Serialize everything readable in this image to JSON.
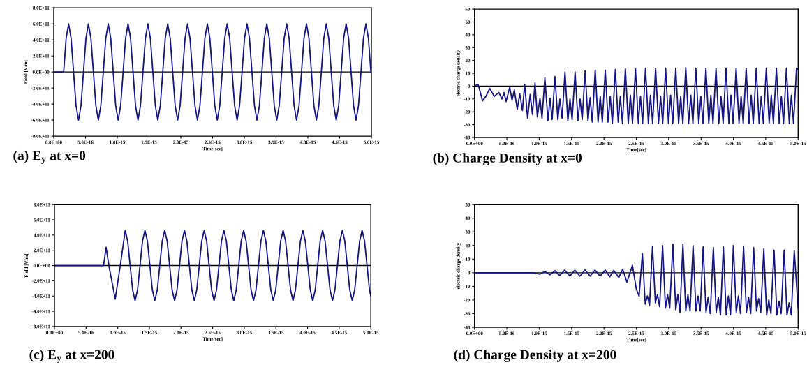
{
  "chart_data": [
    {
      "type": "line",
      "title": "(a) E$_{y}$ at x=0",
      "xlabel": "Time[sec]",
      "ylabel": "Field [V/m]",
      "grid": false,
      "xlim": [
        0,
        5e-15
      ],
      "xticks": [
        {
          "value": 0,
          "label": "0.0E+00"
        },
        {
          "value": 5e-16,
          "label": "5.0E-16"
        },
        {
          "value": 1e-15,
          "label": "1.0E-15"
        },
        {
          "value": 1.5e-15,
          "label": "1.5E-15"
        },
        {
          "value": 2e-15,
          "label": "2.0E-15"
        },
        {
          "value": 2.5e-15,
          "label": "2.5E-15"
        },
        {
          "value": 3e-15,
          "label": "3.0E-15"
        },
        {
          "value": 3.5e-15,
          "label": "3.5E-15"
        },
        {
          "value": 4e-15,
          "label": "4.0E-15"
        },
        {
          "value": 4.5e-15,
          "label": "4.5E-15"
        },
        {
          "value": 5e-15,
          "label": "5.0E-15"
        }
      ],
      "ylim": [
        -800000000000.0,
        800000000000.0
      ],
      "yticks": [
        {
          "value": -800000000000.0,
          "label": "-8.0E+11"
        },
        {
          "value": -600000000000.0,
          "label": "-6.0E+11"
        },
        {
          "value": -400000000000.0,
          "label": "-4.0E+11"
        },
        {
          "value": -200000000000.0,
          "label": "-2.0E+11"
        },
        {
          "value": 0,
          "label": "0.0E+00"
        },
        {
          "value": 200000000000.0,
          "label": "2.0E+11"
        },
        {
          "value": 400000000000.0,
          "label": "4.0E+11"
        },
        {
          "value": 600000000000.0,
          "label": "6.0E+11"
        },
        {
          "value": 800000000000.0,
          "label": "8.0E+11"
        }
      ],
      "ref_lines": [
        {
          "axis": "y",
          "value": 0,
          "color": "#000000"
        }
      ],
      "series": [
        {
          "color": "#141485",
          "x": [
            0,
            1.56e-16,
            1.95e-16,
            2.34e-16,
            2.73e-16,
            3.12e-16,
            3.51e-16,
            3.9e-16,
            4.29e-16,
            4.68e-16,
            5.07e-16,
            5.46e-16,
            5.85e-16,
            6.24e-16,
            6.63e-16,
            7.02e-16,
            7.41e-16,
            7.8e-16,
            8.19e-16,
            8.58e-16,
            8.97e-16,
            9.36e-16,
            9.75e-16,
            1.014e-15,
            1.053e-15,
            1.092e-15,
            1.131e-15,
            1.17e-15,
            1.209e-15,
            1.248e-15,
            1.287e-15,
            1.326e-15,
            1.365e-15,
            1.404e-15,
            1.443e-15,
            1.482e-15,
            1.521e-15,
            1.56e-15,
            1.599e-15,
            1.638e-15,
            1.677e-15,
            1.716e-15,
            1.755e-15,
            1.794e-15,
            1.833e-15,
            1.872e-15,
            1.911e-15,
            1.95e-15,
            1.989e-15,
            2.028e-15,
            2.067e-15,
            2.106e-15,
            2.145e-15,
            2.184e-15,
            2.223e-15,
            2.262e-15,
            2.301e-15,
            2.34e-15,
            2.379e-15,
            2.418e-15,
            2.457e-15,
            2.496e-15,
            2.535e-15,
            2.574e-15,
            2.613e-15,
            2.652e-15,
            2.691e-15,
            2.73e-15,
            2.769e-15,
            2.808e-15,
            2.847e-15,
            2.886e-15,
            2.925e-15,
            2.964e-15,
            3.003e-15,
            3.042e-15,
            3.081e-15,
            3.12e-15,
            3.159e-15,
            3.198e-15,
            3.237e-15,
            3.276e-15,
            3.315e-15,
            3.354e-15,
            3.393e-15,
            3.432e-15,
            3.471e-15,
            3.51e-15,
            3.549e-15,
            3.588e-15,
            3.627e-15,
            3.666e-15,
            3.705e-15,
            3.744e-15,
            3.783e-15,
            3.822e-15,
            3.861e-15,
            3.9e-15,
            3.939e-15,
            3.978e-15,
            4.017e-15,
            4.056e-15,
            4.095e-15,
            4.134e-15,
            4.173e-15,
            4.212e-15,
            4.251e-15,
            4.29e-15,
            4.329e-15,
            4.368e-15,
            4.407e-15,
            4.446e-15,
            4.485e-15,
            4.524e-15,
            4.563e-15,
            4.602e-15,
            4.641e-15,
            4.68e-15,
            4.719e-15,
            4.758e-15,
            4.797e-15,
            4.836e-15,
            4.875e-15,
            4.914e-15,
            4.953e-15,
            4.992e-15
          ],
          "values": [
            0,
            0,
            420000000000.0,
            600000000000.0,
            420000000000.0,
            0,
            -420000000000.0,
            -600000000000.0,
            -420000000000.0,
            0,
            420000000000.0,
            600000000000.0,
            420000000000.0,
            0,
            -420000000000.0,
            -600000000000.0,
            -420000000000.0,
            0,
            420000000000.0,
            600000000000.0,
            420000000000.0,
            0,
            -420000000000.0,
            -600000000000.0,
            -420000000000.0,
            0,
            420000000000.0,
            600000000000.0,
            420000000000.0,
            0,
            -420000000000.0,
            -600000000000.0,
            -420000000000.0,
            0,
            420000000000.0,
            600000000000.0,
            420000000000.0,
            0,
            -420000000000.0,
            -600000000000.0,
            -420000000000.0,
            0,
            420000000000.0,
            600000000000.0,
            420000000000.0,
            0,
            -420000000000.0,
            -600000000000.0,
            -420000000000.0,
            0,
            420000000000.0,
            600000000000.0,
            420000000000.0,
            0,
            -420000000000.0,
            -600000000000.0,
            -420000000000.0,
            0,
            420000000000.0,
            600000000000.0,
            420000000000.0,
            0,
            -420000000000.0,
            -600000000000.0,
            -420000000000.0,
            0,
            420000000000.0,
            600000000000.0,
            420000000000.0,
            0,
            -420000000000.0,
            -600000000000.0,
            -420000000000.0,
            0,
            420000000000.0,
            600000000000.0,
            420000000000.0,
            0,
            -420000000000.0,
            -600000000000.0,
            -420000000000.0,
            0,
            420000000000.0,
            600000000000.0,
            420000000000.0,
            0,
            -420000000000.0,
            -600000000000.0,
            -420000000000.0,
            0,
            420000000000.0,
            600000000000.0,
            420000000000.0,
            0,
            -420000000000.0,
            -600000000000.0,
            -420000000000.0,
            0,
            420000000000.0,
            600000000000.0,
            420000000000.0,
            0,
            -420000000000.0,
            -600000000000.0,
            -420000000000.0,
            0,
            420000000000.0,
            600000000000.0,
            420000000000.0,
            0,
            -420000000000.0,
            -600000000000.0,
            -420000000000.0,
            0,
            420000000000.0,
            600000000000.0,
            420000000000.0,
            0,
            -420000000000.0,
            -600000000000.0,
            -420000000000.0,
            0,
            420000000000.0,
            600000000000.0,
            420000000000.0,
            0
          ]
        }
      ]
    },
    {
      "type": "line",
      "title": "(b) Charge Density at x=0",
      "xlabel": "Time[sec]",
      "ylabel": "electric charge density",
      "grid": false,
      "xlim": [
        0,
        5e-15
      ],
      "xticks": [
        {
          "value": 0,
          "label": "0.0E+00"
        },
        {
          "value": 5e-16,
          "label": "5.0E-16"
        },
        {
          "value": 1e-15,
          "label": "1.0E-15"
        },
        {
          "value": 1.5e-15,
          "label": "1.5E-15"
        },
        {
          "value": 2e-15,
          "label": "2.0E-15"
        },
        {
          "value": 2.5e-15,
          "label": "2.5E-15"
        },
        {
          "value": 3e-15,
          "label": "3.0E-15"
        },
        {
          "value": 3.5e-15,
          "label": "3.5E-15"
        },
        {
          "value": 4e-15,
          "label": "4.0E-15"
        },
        {
          "value": 4.5e-15,
          "label": "4.5E-15"
        },
        {
          "value": 5e-15,
          "label": "5.0E-15"
        }
      ],
      "ylim": [
        -40,
        60
      ],
      "yticks": [
        -40,
        -30,
        -20,
        -10,
        0,
        10,
        20,
        30,
        40,
        50,
        60
      ],
      "ref_lines": [
        {
          "axis": "y",
          "value": 0,
          "color": "#000000"
        }
      ],
      "series": [
        {
          "color": "#141485",
          "x": [
            0,
            5.6e-17,
            1.24e-16,
            1.76e-16,
            2.36e-16,
            3.04e-16,
            3.76e-16,
            4.24e-16,
            4.56e-16,
            4.88e-16,
            5.44e-16,
            5.8e-16,
            6.15e-16,
            6.6e-16,
            7e-16,
            7.4e-16,
            7.75e-16,
            8.2e-16,
            8.6e-16,
            8.95e-16,
            9.35e-16,
            9.71e-16,
            1.011e-15,
            1.043e-15,
            1.087e-15,
            1.135e-15,
            1.167e-15,
            1.199e-15,
            1.243e-15,
            1.287e-15,
            1.32e-15,
            1.353e-15,
            1.398e-15,
            1.442e-15,
            1.475e-15,
            1.508e-15,
            1.554e-15,
            1.598e-15,
            1.631e-15,
            1.664e-15,
            1.709e-15,
            1.753e-15,
            1.786e-15,
            1.819e-15,
            1.865e-15,
            1.909e-15,
            1.942e-15,
            1.975e-15,
            2.02e-15,
            2.064e-15,
            2.097e-15,
            2.13e-15,
            2.176e-15,
            2.22e-15,
            2.253e-15,
            2.286e-15,
            2.331e-15,
            2.375e-15,
            2.408e-15,
            2.441e-15,
            2.487e-15,
            2.531e-15,
            2.564e-15,
            2.597e-15,
            2.642e-15,
            2.686e-15,
            2.719e-15,
            2.752e-15,
            2.798e-15,
            2.842e-15,
            2.875e-15,
            2.908e-15,
            2.953e-15,
            2.997e-15,
            3.03e-15,
            3.063e-15,
            3.109e-15,
            3.153e-15,
            3.186e-15,
            3.219e-15,
            3.264e-15,
            3.308e-15,
            3.341e-15,
            3.374e-15,
            3.42e-15,
            3.464e-15,
            3.497e-15,
            3.53e-15,
            3.575e-15,
            3.619e-15,
            3.652e-15,
            3.685e-15,
            3.731e-15,
            3.775e-15,
            3.808e-15,
            3.841e-15,
            3.886e-15,
            3.93e-15,
            3.963e-15,
            3.996e-15,
            4.042e-15,
            4.086e-15,
            4.119e-15,
            4.152e-15,
            4.197e-15,
            4.241e-15,
            4.274e-15,
            4.307e-15,
            4.353e-15,
            4.397e-15,
            4.43e-15,
            4.463e-15,
            4.508e-15,
            4.552e-15,
            4.585e-15,
            4.618e-15,
            4.664e-15,
            4.708e-15,
            4.741e-15,
            4.774e-15,
            4.819e-15,
            4.863e-15,
            4.896e-15,
            4.929e-15,
            4.975e-15,
            5e-15
          ],
          "values": [
            0,
            1.5,
            -11.5,
            -8,
            -1.8,
            -8,
            -5,
            -10,
            -5,
            -12,
            -1,
            -11,
            -3,
            -18,
            -6,
            -19,
            1.5,
            -25,
            -6.5,
            -22,
            2.5,
            -24,
            -9.5,
            -25,
            6.5,
            -27,
            -9.5,
            -26,
            7.5,
            -26,
            -10,
            -25,
            11,
            -27,
            -10,
            -26,
            11,
            -27,
            -10,
            -26,
            12,
            -27,
            -9,
            -28,
            12.5,
            -28,
            -8,
            -28,
            12.5,
            -28,
            -8,
            -29,
            13,
            -28,
            -8,
            -29,
            13.5,
            -29,
            -7,
            -29,
            13.5,
            -29,
            -8,
            -29,
            14,
            -29,
            -7,
            -29,
            14,
            -29,
            -8,
            -29,
            14,
            -29,
            -7,
            -29,
            14,
            -29,
            -8,
            -29,
            14.5,
            -29,
            -7,
            -29,
            14,
            -29,
            -8,
            -29,
            14,
            -29,
            -7,
            -29,
            14,
            -29,
            -8,
            -29,
            14,
            -29,
            -7,
            -29,
            14,
            -29,
            -8,
            -29,
            14,
            -29,
            -7,
            -29,
            14,
            -29,
            -8,
            -29,
            14,
            -29,
            -7,
            -29,
            14,
            -29,
            -8,
            -29,
            14,
            -29,
            -7,
            -29,
            14,
            13
          ]
        }
      ]
    },
    {
      "type": "line",
      "title": "(c) E$_{y}$ at x=200",
      "xlabel": "Time[sec]",
      "ylabel": "Field [V/m]",
      "grid": false,
      "xlim": [
        0,
        5e-15
      ],
      "xticks": [
        {
          "value": 0,
          "label": "0.0E+00"
        },
        {
          "value": 5e-16,
          "label": "5.0E-16"
        },
        {
          "value": 1e-15,
          "label": "1.0E-15"
        },
        {
          "value": 1.5e-15,
          "label": "1.5E-15"
        },
        {
          "value": 2e-15,
          "label": "2.0E-15"
        },
        {
          "value": 2.5e-15,
          "label": "2.5E-15"
        },
        {
          "value": 3e-15,
          "label": "3.0E-15"
        },
        {
          "value": 3.5e-15,
          "label": "3.5E-15"
        },
        {
          "value": 4e-15,
          "label": "4.0E-15"
        },
        {
          "value": 4.5e-15,
          "label": "4.5E-15"
        },
        {
          "value": 5e-15,
          "label": "5.0E-15"
        }
      ],
      "ylim": [
        -800000000000.0,
        800000000000.0
      ],
      "yticks": [
        {
          "value": -800000000000.0,
          "label": "-8.0E+11"
        },
        {
          "value": -600000000000.0,
          "label": "-6.0E+11"
        },
        {
          "value": -400000000000.0,
          "label": "-4.0E+11"
        },
        {
          "value": -200000000000.0,
          "label": "-2.0E+11"
        },
        {
          "value": 0,
          "label": "0.0E+00"
        },
        {
          "value": 200000000000.0,
          "label": "2.0E+11"
        },
        {
          "value": 400000000000.0,
          "label": "4.0E+11"
        },
        {
          "value": 600000000000.0,
          "label": "6.0E+11"
        },
        {
          "value": 800000000000.0,
          "label": "8.0E+11"
        }
      ],
      "ref_lines": [
        {
          "axis": "y",
          "value": 0,
          "color": "#000000"
        }
      ],
      "series": [
        {
          "color": "#141485",
          "x": [
            0,
            7.76e-16,
            8.16e-16,
            8.6e-16,
            9.6e-16,
            1.04e-15,
            1.118e-15,
            1.157e-15,
            1.196e-15,
            1.235e-15,
            1.274e-15,
            1.313e-15,
            1.352e-15,
            1.391e-15,
            1.43e-15,
            1.469e-15,
            1.508e-15,
            1.547e-15,
            1.586e-15,
            1.625e-15,
            1.664e-15,
            1.703e-15,
            1.742e-15,
            1.781e-15,
            1.82e-15,
            1.859e-15,
            1.898e-15,
            1.937e-15,
            1.976e-15,
            2.015e-15,
            2.054e-15,
            2.093e-15,
            2.132e-15,
            2.171e-15,
            2.21e-15,
            2.249e-15,
            2.288e-15,
            2.327e-15,
            2.366e-15,
            2.405e-15,
            2.444e-15,
            2.483e-15,
            2.522e-15,
            2.561e-15,
            2.6e-15,
            2.639e-15,
            2.678e-15,
            2.717e-15,
            2.756e-15,
            2.795e-15,
            2.834e-15,
            2.873e-15,
            2.912e-15,
            2.951e-15,
            2.99e-15,
            3.029e-15,
            3.068e-15,
            3.107e-15,
            3.146e-15,
            3.185e-15,
            3.224e-15,
            3.263e-15,
            3.302e-15,
            3.341e-15,
            3.38e-15,
            3.419e-15,
            3.458e-15,
            3.497e-15,
            3.536e-15,
            3.575e-15,
            3.614e-15,
            3.653e-15,
            3.692e-15,
            3.731e-15,
            3.77e-15,
            3.809e-15,
            3.848e-15,
            3.887e-15,
            3.926e-15,
            3.965e-15,
            4.004e-15,
            4.043e-15,
            4.082e-15,
            4.121e-15,
            4.16e-15,
            4.199e-15,
            4.238e-15,
            4.277e-15,
            4.316e-15,
            4.355e-15,
            4.394e-15,
            4.433e-15,
            4.472e-15,
            4.511e-15,
            4.55e-15,
            4.589e-15,
            4.628e-15,
            4.667e-15,
            4.706e-15,
            4.745e-15,
            4.784e-15,
            4.823e-15,
            4.862e-15,
            4.901e-15,
            4.94e-15,
            4.979e-15,
            5e-15
          ],
          "values": [
            0,
            0,
            240000000000.0,
            0,
            -440000000000.0,
            0,
            460000000000.0,
            320000000000.0,
            0,
            -320000000000.0,
            -460000000000.0,
            -320000000000.0,
            0,
            320000000000.0,
            460000000000.0,
            320000000000.0,
            0,
            -320000000000.0,
            -460000000000.0,
            -320000000000.0,
            0,
            320000000000.0,
            460000000000.0,
            320000000000.0,
            0,
            -320000000000.0,
            -460000000000.0,
            -320000000000.0,
            0,
            320000000000.0,
            460000000000.0,
            320000000000.0,
            0,
            -320000000000.0,
            -460000000000.0,
            -320000000000.0,
            0,
            320000000000.0,
            460000000000.0,
            320000000000.0,
            0,
            -320000000000.0,
            -460000000000.0,
            -320000000000.0,
            0,
            320000000000.0,
            460000000000.0,
            320000000000.0,
            0,
            -320000000000.0,
            -460000000000.0,
            -320000000000.0,
            0,
            320000000000.0,
            460000000000.0,
            320000000000.0,
            0,
            -320000000000.0,
            -460000000000.0,
            -320000000000.0,
            0,
            320000000000.0,
            460000000000.0,
            320000000000.0,
            0,
            -320000000000.0,
            -460000000000.0,
            -320000000000.0,
            0,
            320000000000.0,
            460000000000.0,
            320000000000.0,
            0,
            -320000000000.0,
            -460000000000.0,
            -320000000000.0,
            0,
            320000000000.0,
            460000000000.0,
            320000000000.0,
            0,
            -320000000000.0,
            -460000000000.0,
            -320000000000.0,
            0,
            320000000000.0,
            460000000000.0,
            320000000000.0,
            0,
            -320000000000.0,
            -460000000000.0,
            -320000000000.0,
            0,
            320000000000.0,
            460000000000.0,
            320000000000.0,
            0,
            -320000000000.0,
            -460000000000.0,
            -320000000000.0,
            0,
            320000000000.0,
            460000000000.0,
            320000000000.0,
            0,
            -320000000000.0,
            -400000000000.0
          ]
        }
      ]
    },
    {
      "type": "line",
      "title": "(d) Charge Density at x=200",
      "xlabel": "Time[sec]",
      "ylabel": "electric charge density",
      "grid": false,
      "xlim": [
        0,
        5e-15
      ],
      "xticks": [
        {
          "value": 0,
          "label": "0.0E+00"
        },
        {
          "value": 5e-16,
          "label": "5.0E-16"
        },
        {
          "value": 1e-15,
          "label": "1.0E-15"
        },
        {
          "value": 1.5e-15,
          "label": "1.5E-15"
        },
        {
          "value": 2e-15,
          "label": "2.0E-15"
        },
        {
          "value": 2.5e-15,
          "label": "2.5E-15"
        },
        {
          "value": 3e-15,
          "label": "3.0E-15"
        },
        {
          "value": 3.5e-15,
          "label": "3.5E-15"
        },
        {
          "value": 4e-15,
          "label": "4.0E-15"
        },
        {
          "value": 4.5e-15,
          "label": "4.5E-15"
        },
        {
          "value": 5e-15,
          "label": "5.0E-15"
        }
      ],
      "ylim": [
        -40,
        50
      ],
      "yticks": [
        -40,
        -30,
        -20,
        -10,
        0,
        10,
        20,
        30,
        40,
        50
      ],
      "ref_lines": [
        {
          "axis": "y",
          "value": 0,
          "color": "#000000"
        }
      ],
      "series": [
        {
          "color": "#141485",
          "x": [
            0,
            9e-16,
            1.015e-15,
            1.087e-15,
            1.165e-15,
            1.243e-15,
            1.315e-15,
            1.395e-15,
            1.473e-15,
            1.55e-15,
            1.628e-15,
            1.71e-15,
            1.786e-15,
            1.86e-15,
            1.94e-15,
            2.02e-15,
            2.09e-15,
            2.15e-15,
            2.23e-15,
            2.29e-15,
            2.355e-15,
            2.44e-15,
            2.5e-15,
            2.543e-15,
            2.594e-15,
            2.638e-15,
            2.671e-15,
            2.704e-15,
            2.75e-15,
            2.794e-15,
            2.827e-15,
            2.86e-15,
            2.906e-15,
            2.95e-15,
            2.983e-15,
            3.016e-15,
            3.065e-15,
            3.109e-15,
            3.142e-15,
            3.175e-15,
            3.22e-15,
            3.264e-15,
            3.297e-15,
            3.33e-15,
            3.377e-15,
            3.421e-15,
            3.454e-15,
            3.487e-15,
            3.533e-15,
            3.577e-15,
            3.61e-15,
            3.643e-15,
            3.69e-15,
            3.734e-15,
            3.767e-15,
            3.8e-15,
            3.845e-15,
            3.889e-15,
            3.922e-15,
            3.955e-15,
            4e-15,
            4.044e-15,
            4.077e-15,
            4.11e-15,
            4.157e-15,
            4.201e-15,
            4.234e-15,
            4.267e-15,
            4.313e-15,
            4.357e-15,
            4.39e-15,
            4.423e-15,
            4.47e-15,
            4.514e-15,
            4.547e-15,
            4.58e-15,
            4.628e-15,
            4.672e-15,
            4.705e-15,
            4.738e-15,
            4.784e-15,
            4.828e-15,
            4.861e-15,
            4.894e-15,
            4.94e-15,
            5e-15
          ],
          "values": [
            0,
            0,
            -1,
            1,
            -1.5,
            1.5,
            -2,
            2,
            -2.5,
            2,
            -2.5,
            2,
            -2.5,
            2,
            -2.5,
            2,
            -3,
            1.8,
            -3.5,
            2.5,
            -7,
            5.5,
            -12,
            -17,
            14,
            -23,
            -17,
            -24,
            19.5,
            -22,
            -16,
            -25,
            20,
            -26,
            -16,
            -26,
            21,
            -27,
            -16,
            -29,
            21,
            -28,
            -16,
            -28,
            20,
            -28,
            -17,
            -28,
            19,
            -29,
            -18,
            -30,
            18.5,
            -29,
            -18,
            -31,
            19,
            -31,
            -17,
            -31,
            20,
            -29,
            -17,
            -30,
            19.5,
            -29,
            -18,
            -30,
            18.5,
            -28,
            -19,
            -29,
            17.5,
            -31,
            -20,
            -30,
            16.5,
            -31,
            -21,
            -30,
            16.5,
            -31,
            -22,
            -31,
            16,
            -26
          ]
        }
      ]
    }
  ]
}
